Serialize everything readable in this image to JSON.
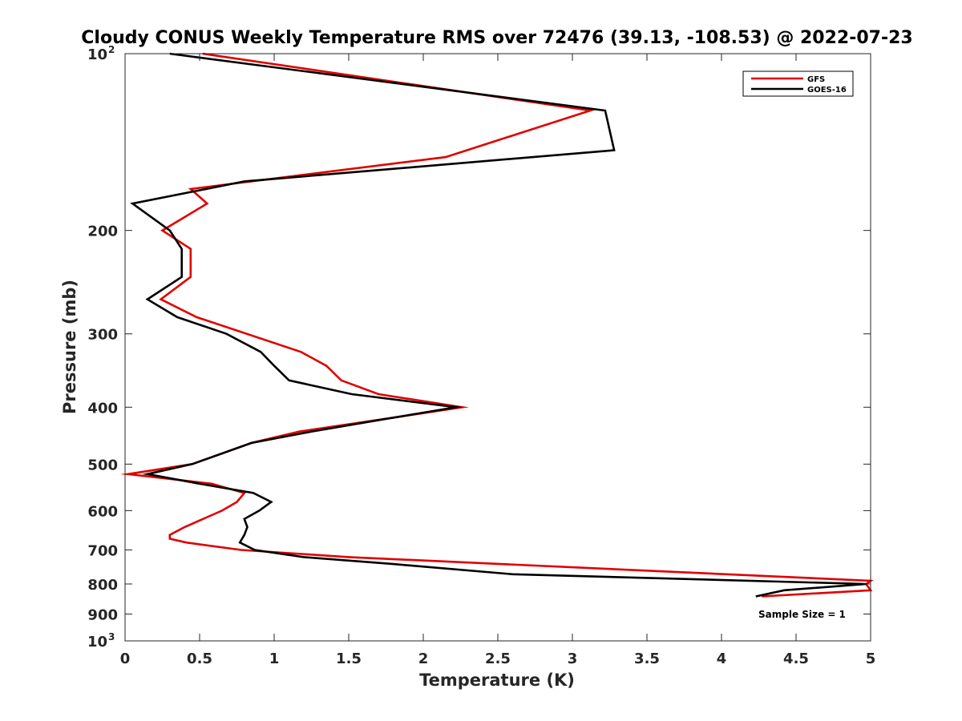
{
  "chart_data": {
    "type": "line",
    "title": "Cloudy CONUS Weekly Temperature RMS over 72476 (39.13, -108.53) @ 2022-07-23",
    "xlabel": "Temperature (K)",
    "ylabel": "Pressure (mb)",
    "xlim": [
      0,
      5
    ],
    "ylim": [
      100,
      1000
    ],
    "y_scale": "log",
    "y_reversed": true,
    "x_ticks": [
      0,
      0.5,
      1,
      1.5,
      2,
      2.5,
      3,
      3.5,
      4,
      4.5,
      5
    ],
    "x_tick_labels": [
      "0",
      "0.5",
      "1",
      "1.5",
      "2",
      "2.5",
      "3",
      "3.5",
      "4",
      "4.5",
      "5"
    ],
    "y_ticks": [
      {
        "value": 100,
        "label": "10",
        "exp": "2"
      },
      {
        "value": 200,
        "label": "200",
        "exp": ""
      },
      {
        "value": 300,
        "label": "300",
        "exp": ""
      },
      {
        "value": 400,
        "label": "400",
        "exp": ""
      },
      {
        "value": 500,
        "label": "500",
        "exp": ""
      },
      {
        "value": 600,
        "label": "600",
        "exp": ""
      },
      {
        "value": 700,
        "label": "700",
        "exp": ""
      },
      {
        "value": 800,
        "label": "800",
        "exp": ""
      },
      {
        "value": 900,
        "label": "900",
        "exp": ""
      },
      {
        "value": 1000,
        "label": "10",
        "exp": "3"
      }
    ],
    "legend_position": "top-right",
    "note": "Sample Size = 1",
    "series": [
      {
        "name": "GFS",
        "color": "#e00000",
        "x": [
          0.52,
          3.12,
          2.15,
          0.44,
          0.55,
          0.25,
          0.44,
          0.44,
          0.24,
          0.48,
          1.18,
          1.35,
          1.45,
          1.7,
          2.26,
          1.71,
          1.17,
          0.85,
          0.45,
          0.02,
          0.58,
          0.8,
          0.75,
          0.65,
          0.4,
          0.3,
          0.3,
          0.41,
          0.78,
          1.5,
          5.0,
          4.97,
          5.0,
          4.27
        ],
        "y": [
          100,
          125,
          150,
          170,
          180,
          200,
          215,
          240,
          262,
          281,
          322,
          340,
          360,
          380,
          400,
          420,
          440,
          460,
          500,
          520,
          540,
          560,
          580,
          600,
          640,
          660,
          670,
          680,
          700,
          720,
          790,
          800,
          820,
          840
        ]
      },
      {
        "name": "GOES-16",
        "color": "#000000",
        "x": [
          0.3,
          3.22,
          3.28,
          0.8,
          0.05,
          0.3,
          0.38,
          0.38,
          0.15,
          0.35,
          0.68,
          0.91,
          1.0,
          1.1,
          1.52,
          2.22,
          1.72,
          1.25,
          0.85,
          0.45,
          0.15,
          0.5,
          0.86,
          0.98,
          0.9,
          0.8,
          0.82,
          0.8,
          0.77,
          0.87,
          1.2,
          1.8,
          2.6,
          4.97,
          4.42,
          4.23
        ],
        "y": [
          100,
          125,
          146,
          165,
          180,
          200,
          215,
          240,
          262,
          281,
          300,
          322,
          340,
          360,
          380,
          400,
          420,
          440,
          460,
          500,
          520,
          540,
          560,
          580,
          600,
          620,
          640,
          660,
          680,
          700,
          720,
          740,
          770,
          800,
          820,
          840
        ]
      }
    ]
  }
}
